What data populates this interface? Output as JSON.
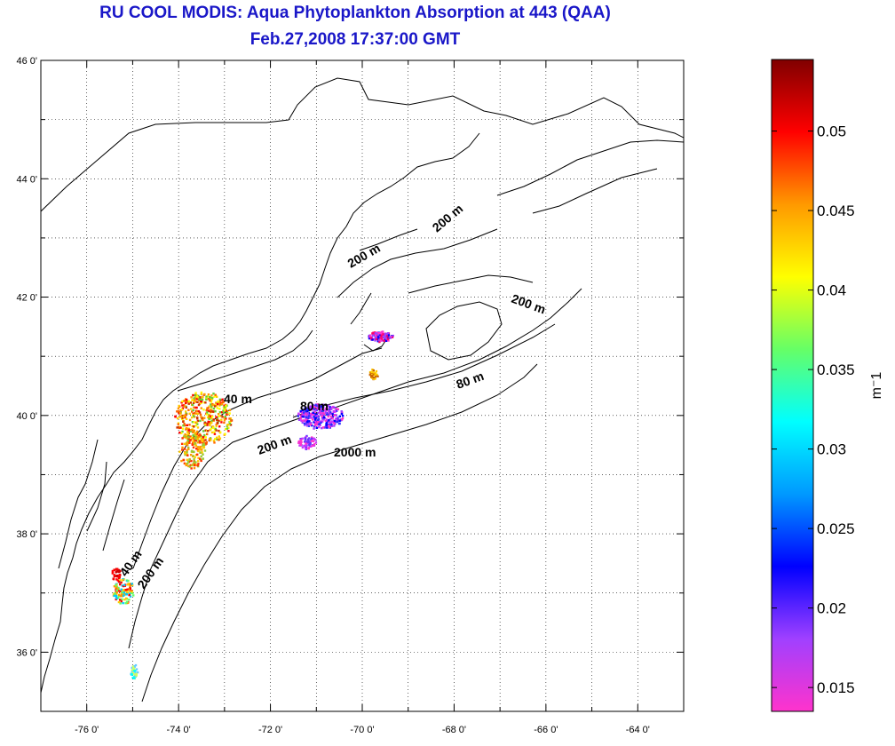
{
  "title": {
    "line1": "RU COOL MODIS: Aqua Phytoplankton Absorption at 443 (QAA)",
    "line2": "Feb.27,2008 17:37:00 GMT"
  },
  "map": {
    "lon_ticks": [
      "-76 0'",
      "-74 0'",
      "-72 0'",
      "-70 0'",
      "-68 0'",
      "-66 0'",
      "-64 0'"
    ],
    "lat_ticks": [
      "46 0'",
      "44 0'",
      "42 0'",
      "40 0'",
      "38 0'",
      "36 0'"
    ],
    "lon_range": [
      -77,
      -63
    ],
    "lat_range": [
      35,
      46
    ],
    "grid": "dotted",
    "contour_labels": [
      "200 m",
      "200 m",
      "200 m",
      "40 m",
      "80 m",
      "80 m",
      "200 m",
      "2000 m",
      "40 m",
      "200 m"
    ]
  },
  "colorbar": {
    "tick_labels": [
      "0.05",
      "0.045",
      "0.04",
      "0.035",
      "0.03",
      "0.025",
      "0.02",
      "0.015"
    ],
    "range": [
      0.0135,
      0.0545
    ],
    "unit": "m⁻1",
    "colors": [
      "#ff33cc",
      "#a040ff",
      "#0000ff",
      "#0099ff",
      "#00ffff",
      "#66ff66",
      "#ffff00",
      "#ff9900",
      "#ff0000",
      "#800000"
    ]
  },
  "chart_data": {
    "type": "heatmap",
    "title": "RU COOL MODIS: Aqua Phytoplankton Absorption at 443 (QAA)",
    "subtitle": "Feb.27,2008 17:37:00 GMT",
    "xlim": [
      -77,
      -63
    ],
    "ylim": [
      35,
      46
    ],
    "colorbar_range": [
      0.0135,
      0.0545
    ],
    "colorbar_unit": "m⁻1"
  }
}
